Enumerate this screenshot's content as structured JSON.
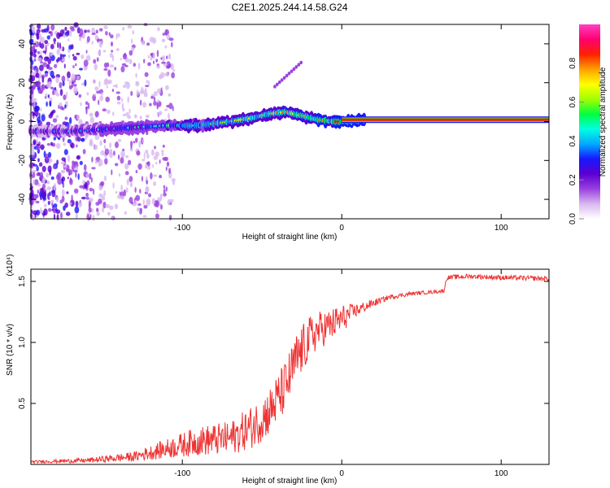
{
  "title": "C2E1.2025.244.14.58.G24",
  "chart_data": [
    {
      "type": "heatmap",
      "xlabel": "Height of straight line (km)",
      "ylabel": "Frequency (Hz)",
      "xlim": [
        -195,
        130
      ],
      "ylim": [
        -50,
        50
      ],
      "xticks": [
        -100,
        0,
        100
      ],
      "xtick_labels": [
        "-100",
        "0",
        "100"
      ],
      "yticks": [
        -40,
        -20,
        0,
        20,
        40
      ],
      "ytick_labels": [
        "-40",
        "-20",
        "0",
        "20",
        "40"
      ],
      "ridge": {
        "x": [
          -195,
          -170,
          -150,
          -130,
          -110,
          -90,
          -70,
          -55,
          -45,
          -35,
          -25,
          -15,
          -5,
          5,
          15,
          130
        ],
        "y": [
          -5,
          -5,
          -4,
          -3,
          -2,
          -2,
          0,
          2,
          4,
          5,
          3,
          1,
          0,
          0,
          1,
          0.5
        ]
      },
      "colorbar": {
        "label": "Normalized spectral amplitude",
        "range": [
          0,
          1
        ],
        "ticks": [
          0.0,
          0.2,
          0.4,
          0.6,
          0.8
        ],
        "tick_labels": [
          "0.0",
          "0.2",
          "0.4",
          "0.6",
          "0.8"
        ],
        "colors": [
          "#ffffff",
          "#d8b8f0",
          "#9a40e0",
          "#5a00d0",
          "#1818ff",
          "#00aaff",
          "#00ffe0",
          "#00ff40",
          "#a0ff00",
          "#ffff00",
          "#ffa000",
          "#ff2000",
          "#ff0070",
          "#ff40c0"
        ]
      }
    },
    {
      "type": "line",
      "xlabel": "Height of straight line (km)",
      "ylabel": "SNR (10 * v/v)",
      "scale_label": "(x10⁴)",
      "xlim": [
        -195,
        130
      ],
      "ylim": [
        0,
        1.6
      ],
      "xticks": [
        -100,
        0,
        100
      ],
      "xtick_labels": [
        "-100",
        "0",
        "100"
      ],
      "yticks": [
        0.5,
        1.0,
        1.5
      ],
      "ytick_labels": [
        "0.5",
        "1.0",
        "1.5"
      ],
      "color": "#ee3333",
      "series": [
        {
          "name": "SNR",
          "x": [
            -195,
            -160,
            -130,
            -110,
            -90,
            -70,
            -55,
            -45,
            -35,
            -28,
            -20,
            -15,
            -8,
            0,
            8,
            20,
            30,
            45,
            55,
            64,
            66,
            80,
            100,
            130
          ],
          "y": [
            0.02,
            0.03,
            0.06,
            0.12,
            0.18,
            0.2,
            0.3,
            0.42,
            0.62,
            0.85,
            1.02,
            1.08,
            1.12,
            1.18,
            1.25,
            1.32,
            1.37,
            1.4,
            1.41,
            1.42,
            1.53,
            1.54,
            1.53,
            1.52
          ],
          "noise": [
            0.01,
            0.02,
            0.04,
            0.08,
            0.12,
            0.14,
            0.18,
            0.2,
            0.22,
            0.22,
            0.18,
            0.16,
            0.14,
            0.12,
            0.06,
            0.03,
            0.02,
            0.015,
            0.015,
            0.015,
            0.02,
            0.02,
            0.02,
            0.02
          ]
        }
      ]
    }
  ]
}
